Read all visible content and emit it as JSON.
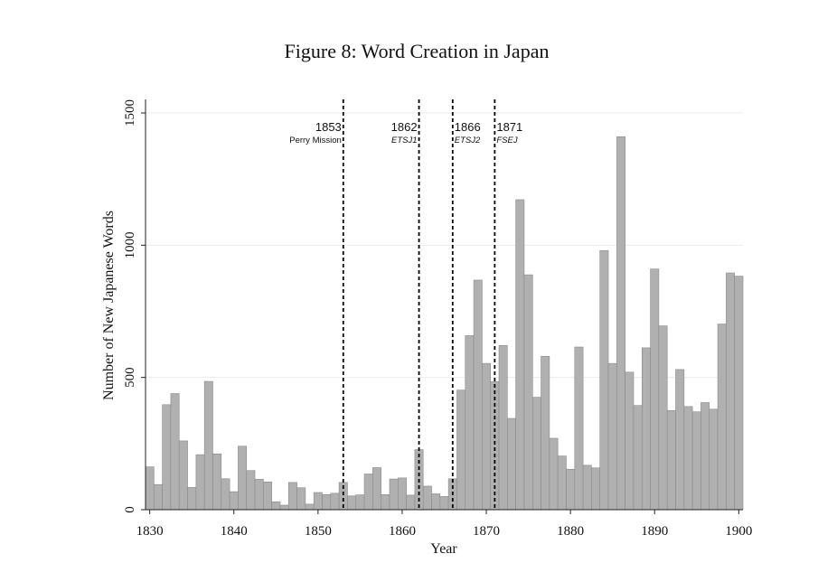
{
  "chart_data": {
    "type": "bar",
    "title": "Figure 8: Word Creation in Japan",
    "xlabel": "Year",
    "ylabel": "Number of New Japanese Words",
    "xlim": [
      1829.5,
      1900.5
    ],
    "ylim": [
      0,
      1500
    ],
    "x_ticks": [
      1830,
      1840,
      1850,
      1860,
      1870,
      1880,
      1890,
      1900
    ],
    "y_ticks": [
      0,
      500,
      1000,
      1500
    ],
    "grid": true,
    "bar_color": "#b0b0b0",
    "bar_edge_color": "#8a8a8a",
    "x": [
      1830,
      1831,
      1832,
      1833,
      1834,
      1835,
      1836,
      1837,
      1838,
      1839,
      1840,
      1841,
      1842,
      1843,
      1844,
      1845,
      1846,
      1847,
      1848,
      1849,
      1850,
      1851,
      1852,
      1853,
      1854,
      1855,
      1856,
      1857,
      1858,
      1859,
      1860,
      1861,
      1862,
      1863,
      1864,
      1865,
      1866,
      1867,
      1868,
      1869,
      1870,
      1871,
      1872,
      1873,
      1874,
      1875,
      1876,
      1877,
      1878,
      1879,
      1880,
      1881,
      1882,
      1883,
      1884,
      1885,
      1886,
      1887,
      1888,
      1889,
      1890,
      1891,
      1892,
      1893,
      1894,
      1895,
      1896,
      1897,
      1898,
      1899,
      1900
    ],
    "values": [
      162,
      95,
      397,
      439,
      260,
      84,
      208,
      485,
      211,
      117,
      68,
      240,
      148,
      115,
      105,
      30,
      17,
      103,
      83,
      21,
      65,
      57,
      62,
      103,
      52,
      56,
      135,
      159,
      57,
      116,
      120,
      55,
      227,
      89,
      60,
      50,
      117,
      452,
      658,
      868,
      553,
      484,
      621,
      345,
      1172,
      888,
      425,
      580,
      270,
      203,
      153,
      615,
      168,
      158,
      980,
      553,
      1410,
      520,
      394,
      612,
      910,
      695,
      375,
      530,
      390,
      370,
      405,
      380,
      702,
      895,
      883
    ],
    "annotations": [
      {
        "x": 1853,
        "year": "1853",
        "label": "Perry Mission"
      },
      {
        "x": 1862,
        "year": "1862",
        "label": "ETSJ1"
      },
      {
        "x": 1866,
        "year": "1866",
        "label": "ETSJ2"
      },
      {
        "x": 1871,
        "year": "1871",
        "label": "FSEJ"
      }
    ]
  }
}
